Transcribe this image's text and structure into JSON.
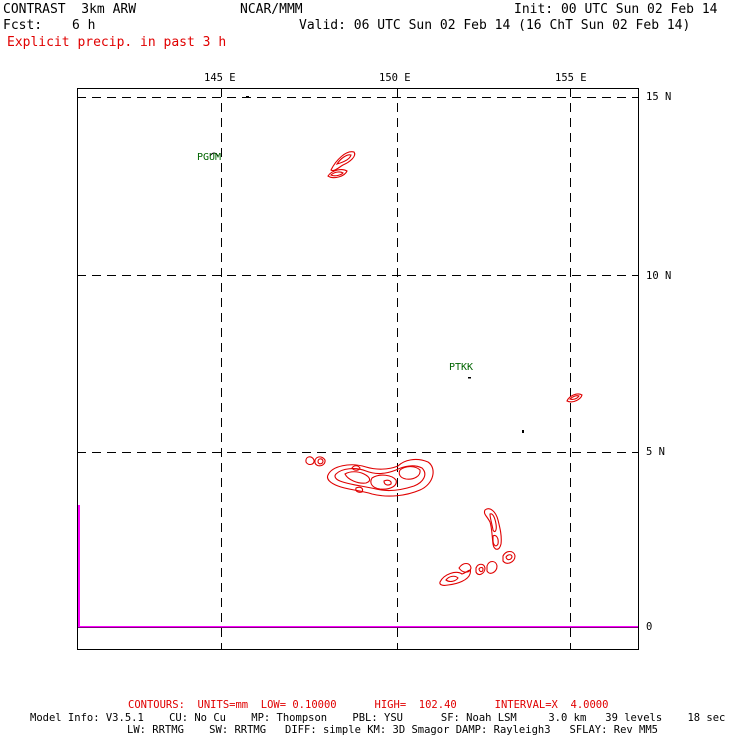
{
  "header": {
    "model_title": "CONTRAST  3km ARW",
    "org": "NCAR/MMM",
    "init": "Init: 00 UTC Sun 02 Feb 14",
    "fcst_label": "Fcst:",
    "fcst_value": "6 h",
    "valid": "Valid: 06 UTC Sun 02 Feb 14 (16 ChT Sun 02 Feb 14)",
    "field_title": "Explicit precip. in past 3 h"
  },
  "map": {
    "lon_labels": [
      "145 E",
      "150 E",
      "155 E"
    ],
    "lat_labels": [
      "15 N",
      "10 N",
      "5 N",
      "0"
    ],
    "stations": [
      {
        "id": "PGUM",
        "label": "PGUM"
      },
      {
        "id": "PTKK",
        "label": "PTKK"
      }
    ],
    "colors": {
      "frame": "#000000",
      "grid": "#000000",
      "contour": "#e00000",
      "station": "#006400",
      "profile": "#ff00ff"
    }
  },
  "footer": {
    "contours": "CONTOURS:  UNITS=mm  LOW= 0.10000      HIGH=  102.40      INTERVAL=X  4.0000",
    "model_info_1": "Model Info: V3.5.1    CU: No Cu    MP: Thompson    PBL: YSU      SF: Noah LSM     3.0 km   39 levels    18 sec",
    "model_info_2": "LW: RRTMG    SW: RRTMG   DIFF: simple KM: 3D Smagor DAMP: Rayleigh3   SFLAY: Rev MM5"
  }
}
